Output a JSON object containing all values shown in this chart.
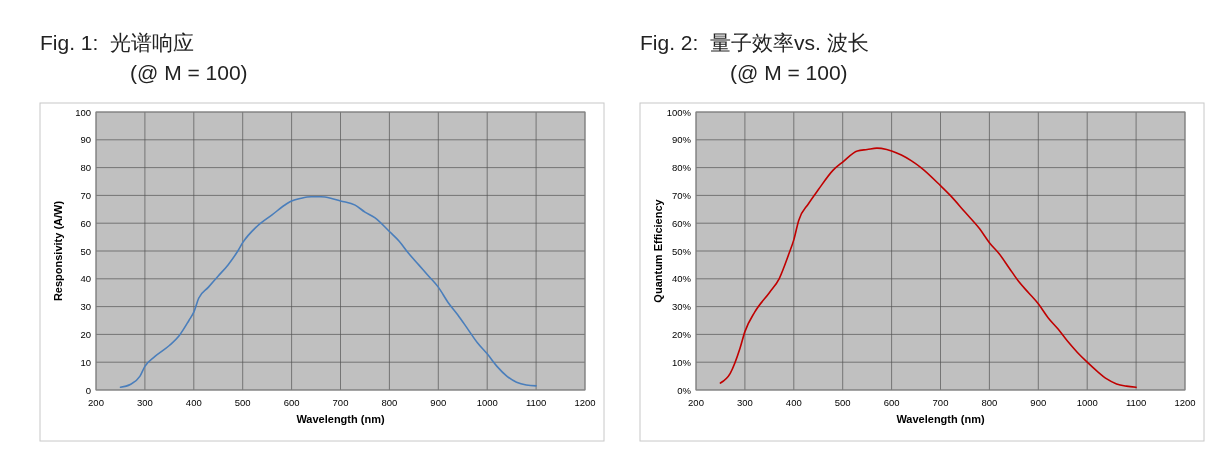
{
  "chart_data": [
    {
      "type": "line",
      "title": "Fig. 1:  光谱响应",
      "subtitle": "(@ M = 100)",
      "xlabel": "Wavelength (nm)",
      "ylabel": "Responsivity (A/W)",
      "x": [
        250,
        270,
        290,
        300,
        320,
        350,
        370,
        390,
        400,
        410,
        430,
        450,
        470,
        490,
        500,
        530,
        560,
        590,
        600,
        620,
        640,
        660,
        680,
        700,
        730,
        750,
        770,
        800,
        820,
        840,
        860,
        880,
        900,
        920,
        940,
        960,
        980,
        1000,
        1020,
        1040,
        1060,
        1080,
        1100
      ],
      "series": [
        {
          "color": "#4a7ebb",
          "values": [
            1,
            2,
            5,
            8.5,
            12,
            16,
            19.5,
            25,
            28,
            33,
            37,
            41,
            45,
            50,
            53,
            59,
            63,
            67,
            68,
            69,
            69.5,
            69.5,
            69,
            68,
            66.5,
            64,
            62,
            57,
            53.5,
            49,
            45,
            41,
            37,
            31.5,
            27,
            22,
            17,
            13,
            8.5,
            5,
            2.8,
            1.8,
            1.5
          ]
        }
      ],
      "xlim": [
        200,
        1200
      ],
      "xticks": [
        200,
        300,
        400,
        500,
        600,
        700,
        800,
        900,
        1000,
        1100,
        1200
      ],
      "ylim": [
        0,
        100
      ],
      "yticks": [
        0,
        10,
        20,
        30,
        40,
        50,
        60,
        70,
        80,
        90,
        100
      ],
      "grid": true,
      "marker": "none",
      "line_style": "solid"
    },
    {
      "type": "line",
      "title": "Fig. 2:  量子效率vs. 波长",
      "subtitle": "(@ M = 100)",
      "xlabel": "Wavelength (nm)",
      "ylabel": "Quantum Efficiency",
      "x": [
        250,
        270,
        290,
        300,
        320,
        350,
        370,
        390,
        400,
        410,
        430,
        450,
        480,
        500,
        530,
        550,
        570,
        590,
        600,
        620,
        640,
        660,
        700,
        720,
        750,
        780,
        800,
        820,
        840,
        860,
        880,
        900,
        920,
        940,
        960,
        980,
        1000,
        1020,
        1040,
        1060,
        1080,
        1100
      ],
      "series": [
        {
          "color": "#c00000",
          "values": [
            2.5,
            6,
            15,
            21,
            28,
            35,
            40,
            49,
            54,
            61,
            67,
            72,
            79,
            82,
            86,
            86.5,
            87,
            86.5,
            86,
            84.5,
            82.5,
            80,
            73.5,
            70,
            64,
            58,
            53,
            49,
            44,
            39,
            35,
            31,
            26,
            22,
            17.5,
            13.5,
            10,
            6.8,
            4,
            2.2,
            1.4,
            1
          ]
        }
      ],
      "xlim": [
        200,
        1200
      ],
      "xticks": [
        200,
        300,
        400,
        500,
        600,
        700,
        800,
        900,
        1000,
        1100,
        1200
      ],
      "ylim": [
        0,
        100
      ],
      "yticks": [
        {
          "value": 0,
          "label": "0%"
        },
        {
          "value": 10,
          "label": "10%"
        },
        {
          "value": 20,
          "label": "20%"
        },
        {
          "value": 30,
          "label": "30%"
        },
        {
          "value": 40,
          "label": "40%"
        },
        {
          "value": 50,
          "label": "50%"
        },
        {
          "value": 60,
          "label": "60%"
        },
        {
          "value": 70,
          "label": "70%"
        },
        {
          "value": 80,
          "label": "80%"
        },
        {
          "value": 90,
          "label": "90%"
        },
        {
          "value": 100,
          "label": "100%"
        }
      ],
      "grid": true,
      "marker": "none",
      "line_style": "solid"
    }
  ]
}
